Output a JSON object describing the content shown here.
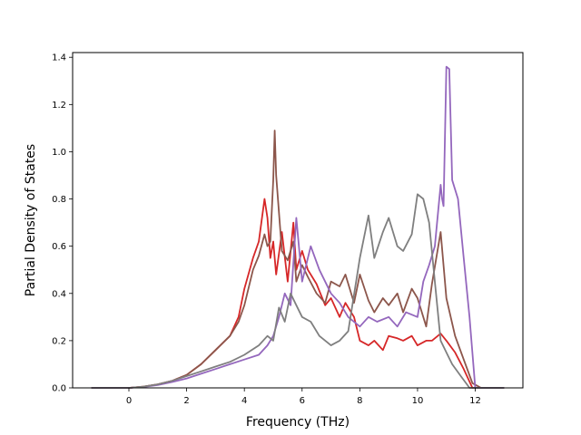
{
  "chart_data": {
    "type": "line",
    "title": "",
    "xlabel": "Frequency (THz)",
    "ylabel": "Partial Density of States",
    "xlim": [
      -1.95,
      13.65
    ],
    "ylim": [
      0,
      1.42
    ],
    "xticks": [
      0,
      2,
      4,
      6,
      8,
      10,
      12
    ],
    "xtick_labels": [
      "0",
      "2",
      "4",
      "6",
      "8",
      "10",
      "12"
    ],
    "yticks": [
      0.0,
      0.2,
      0.4,
      0.6,
      0.8,
      1.0,
      1.2,
      1.4
    ],
    "ytick_labels": [
      "0.0",
      "0.2",
      "0.4",
      "0.6",
      "0.8",
      "1.0",
      "1.2",
      "1.4"
    ],
    "grid": false,
    "legend": "none",
    "series": [
      {
        "color": "#d62728",
        "x": [
          -1.3,
          0,
          0.5,
          1,
          1.5,
          2,
          2.5,
          3,
          3.5,
          3.8,
          4,
          4.3,
          4.5,
          4.7,
          4.8,
          4.9,
          5.0,
          5.1,
          5.3,
          5.5,
          5.7,
          5.8,
          6.0,
          6.2,
          6.5,
          6.8,
          7.0,
          7.3,
          7.5,
          7.8,
          8.0,
          8.3,
          8.5,
          8.8,
          9.0,
          9.3,
          9.5,
          9.8,
          10.0,
          10.3,
          10.5,
          10.8,
          11.0,
          11.3,
          11.6,
          11.9,
          12.2,
          13.0
        ],
        "y": [
          0,
          0,
          0.005,
          0.015,
          0.03,
          0.055,
          0.1,
          0.16,
          0.22,
          0.3,
          0.42,
          0.55,
          0.62,
          0.8,
          0.72,
          0.55,
          0.62,
          0.48,
          0.66,
          0.45,
          0.7,
          0.5,
          0.58,
          0.5,
          0.44,
          0.35,
          0.38,
          0.3,
          0.36,
          0.3,
          0.2,
          0.18,
          0.2,
          0.16,
          0.22,
          0.21,
          0.2,
          0.22,
          0.18,
          0.2,
          0.2,
          0.23,
          0.2,
          0.15,
          0.08,
          0.0,
          0,
          0
        ]
      },
      {
        "color": "#8c564b",
        "x": [
          -1.3,
          0,
          0.5,
          1,
          1.5,
          2,
          2.5,
          3,
          3.5,
          3.8,
          4,
          4.3,
          4.5,
          4.7,
          4.8,
          4.9,
          5.0,
          5.05,
          5.1,
          5.3,
          5.5,
          5.7,
          5.8,
          6.0,
          6.2,
          6.5,
          6.8,
          7.0,
          7.3,
          7.5,
          7.8,
          8.0,
          8.3,
          8.5,
          8.8,
          9.0,
          9.3,
          9.5,
          9.8,
          10.0,
          10.3,
          10.5,
          10.8,
          11.0,
          11.3,
          11.6,
          11.9,
          12.2,
          13.0
        ],
        "y": [
          0,
          0,
          0.005,
          0.015,
          0.03,
          0.055,
          0.1,
          0.16,
          0.22,
          0.28,
          0.35,
          0.5,
          0.56,
          0.65,
          0.6,
          0.62,
          0.88,
          1.09,
          0.9,
          0.58,
          0.54,
          0.62,
          0.45,
          0.52,
          0.47,
          0.4,
          0.36,
          0.45,
          0.43,
          0.48,
          0.36,
          0.48,
          0.37,
          0.32,
          0.38,
          0.35,
          0.4,
          0.32,
          0.42,
          0.38,
          0.26,
          0.44,
          0.66,
          0.38,
          0.22,
          0.12,
          0.02,
          0,
          0
        ]
      },
      {
        "color": "#9467bd",
        "x": [
          -1.3,
          0,
          0.5,
          1,
          1.5,
          2,
          2.5,
          3,
          3.5,
          4,
          4.5,
          4.8,
          5.0,
          5.2,
          5.4,
          5.6,
          5.8,
          6.0,
          6.3,
          6.6,
          7.0,
          7.3,
          7.6,
          8.0,
          8.3,
          8.6,
          9.0,
          9.3,
          9.6,
          10.0,
          10.2,
          10.4,
          10.6,
          10.8,
          10.85,
          10.9,
          11.0,
          11.1,
          11.2,
          11.4,
          11.6,
          11.8,
          12.0,
          13.0
        ],
        "y": [
          0,
          0,
          0.004,
          0.012,
          0.025,
          0.04,
          0.06,
          0.08,
          0.1,
          0.12,
          0.14,
          0.18,
          0.22,
          0.3,
          0.4,
          0.35,
          0.72,
          0.45,
          0.6,
          0.5,
          0.4,
          0.36,
          0.3,
          0.26,
          0.3,
          0.28,
          0.3,
          0.26,
          0.32,
          0.3,
          0.45,
          0.52,
          0.6,
          0.86,
          0.8,
          0.77,
          1.36,
          1.35,
          0.88,
          0.8,
          0.55,
          0.3,
          0.0,
          0
        ]
      },
      {
        "color": "#7f7f7f",
        "x": [
          -1.3,
          0,
          0.5,
          1,
          1.5,
          2,
          2.5,
          3,
          3.5,
          4,
          4.5,
          4.8,
          5.0,
          5.2,
          5.4,
          5.6,
          5.8,
          6.0,
          6.3,
          6.6,
          7.0,
          7.3,
          7.6,
          8.0,
          8.3,
          8.5,
          8.8,
          9.0,
          9.3,
          9.5,
          9.8,
          10.0,
          10.2,
          10.4,
          10.6,
          10.8,
          11.0,
          11.2,
          11.5,
          11.8,
          12.0,
          13.0
        ],
        "y": [
          0,
          0,
          0.005,
          0.015,
          0.03,
          0.05,
          0.07,
          0.09,
          0.11,
          0.14,
          0.18,
          0.22,
          0.2,
          0.34,
          0.28,
          0.4,
          0.35,
          0.3,
          0.28,
          0.22,
          0.18,
          0.2,
          0.24,
          0.55,
          0.73,
          0.55,
          0.66,
          0.72,
          0.6,
          0.58,
          0.65,
          0.82,
          0.8,
          0.7,
          0.45,
          0.2,
          0.15,
          0.1,
          0.05,
          0.0,
          0,
          0
        ]
      }
    ]
  }
}
